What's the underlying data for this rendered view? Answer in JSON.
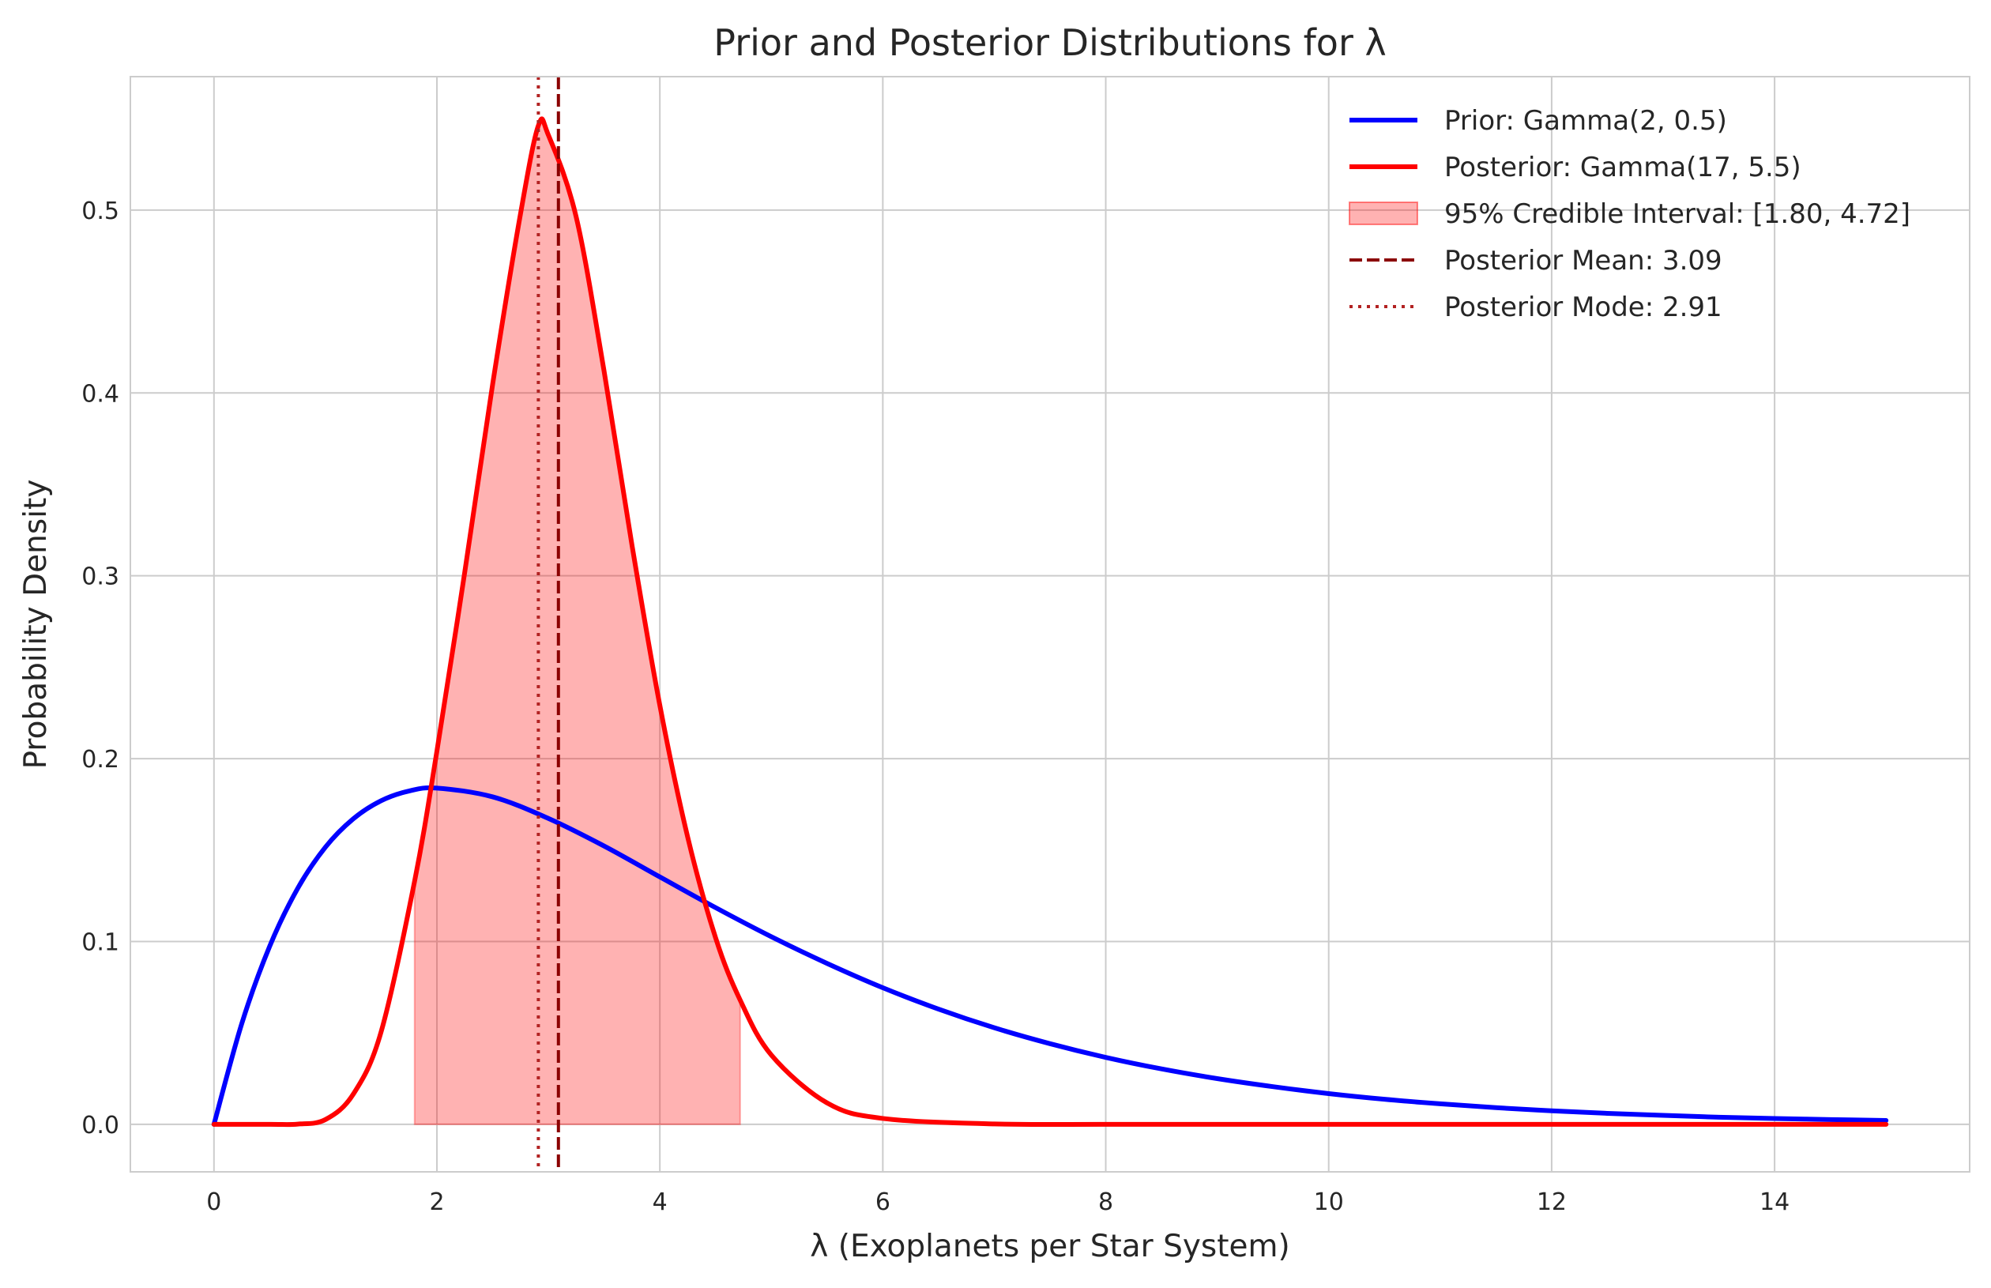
{
  "chart_data": {
    "type": "line",
    "title": "Prior and Posterior Distributions for λ",
    "xlabel": "λ (Exoplanets per Star System)",
    "ylabel": "Probability Density",
    "xlim": [
      -0.75,
      15.75
    ],
    "ylim": [
      -0.026,
      0.573
    ],
    "xticks": [
      0,
      2,
      4,
      6,
      8,
      10,
      12,
      14
    ],
    "yticks": [
      0.0,
      0.1,
      0.2,
      0.3,
      0.4,
      0.5
    ],
    "xtick_labels": [
      "0",
      "2",
      "4",
      "6",
      "8",
      "10",
      "12",
      "14"
    ],
    "ytick_labels": [
      "0.0",
      "0.1",
      "0.2",
      "0.3",
      "0.4",
      "0.5"
    ],
    "grid": true,
    "legend_position": "top-right",
    "series": [
      {
        "name": "Prior: Gamma(2, 0.5)",
        "color": "#0000ff",
        "x": [
          0,
          0.25,
          0.5,
          0.75,
          1,
          1.25,
          1.5,
          1.75,
          2,
          2.5,
          3,
          3.5,
          4,
          4.5,
          5,
          5.5,
          6,
          6.5,
          7,
          7.5,
          8,
          8.5,
          9,
          9.5,
          10,
          10.5,
          11,
          11.5,
          12,
          12.5,
          13,
          13.5,
          14,
          14.5,
          15
        ],
        "y": [
          0,
          0.0552,
          0.0974,
          0.1289,
          0.1516,
          0.1671,
          0.177,
          0.1823,
          0.1839,
          0.1791,
          0.1673,
          0.1522,
          0.1353,
          0.1185,
          0.1026,
          0.088,
          0.0747,
          0.063,
          0.0528,
          0.0441,
          0.0366,
          0.0303,
          0.025,
          0.0206,
          0.0168,
          0.0137,
          0.0112,
          0.0091,
          0.0074,
          0.006,
          0.0049,
          0.0039,
          0.0032,
          0.0026,
          0.0021
        ]
      },
      {
        "name": "Posterior: Gamma(17, 5.5)",
        "color": "#ff0000",
        "x": [
          0,
          0.5,
          0.75,
          1,
          1.25,
          1.5,
          1.8,
          2,
          2.25,
          2.5,
          2.75,
          2.91,
          3,
          3.25,
          3.5,
          3.75,
          4,
          4.25,
          4.5,
          4.72,
          5,
          5.5,
          6,
          7,
          8,
          10,
          12,
          15
        ],
        "y": [
          0,
          0,
          0.0001,
          0.0026,
          0.0165,
          0.0507,
          0.133,
          0.2041,
          0.3021,
          0.4048,
          0.498,
          0.5462,
          0.541,
          0.4961,
          0.4118,
          0.3167,
          0.2291,
          0.157,
          0.102,
          0.068,
          0.0379,
          0.0117,
          0.0032,
          0.0002,
          0,
          0,
          0,
          0
        ]
      }
    ],
    "credible_interval": {
      "label": "95% Credible Interval: [1.80, 4.72]",
      "low": 1.8,
      "high": 4.72,
      "color": "#ff0000"
    },
    "reference_lines": [
      {
        "label": "Posterior Mean: 3.09",
        "x": 3.09,
        "style": "dashed",
        "color": "#8b0000"
      },
      {
        "label": "Posterior Mode: 2.91",
        "x": 2.91,
        "style": "dotted",
        "color": "#b22222"
      }
    ]
  }
}
